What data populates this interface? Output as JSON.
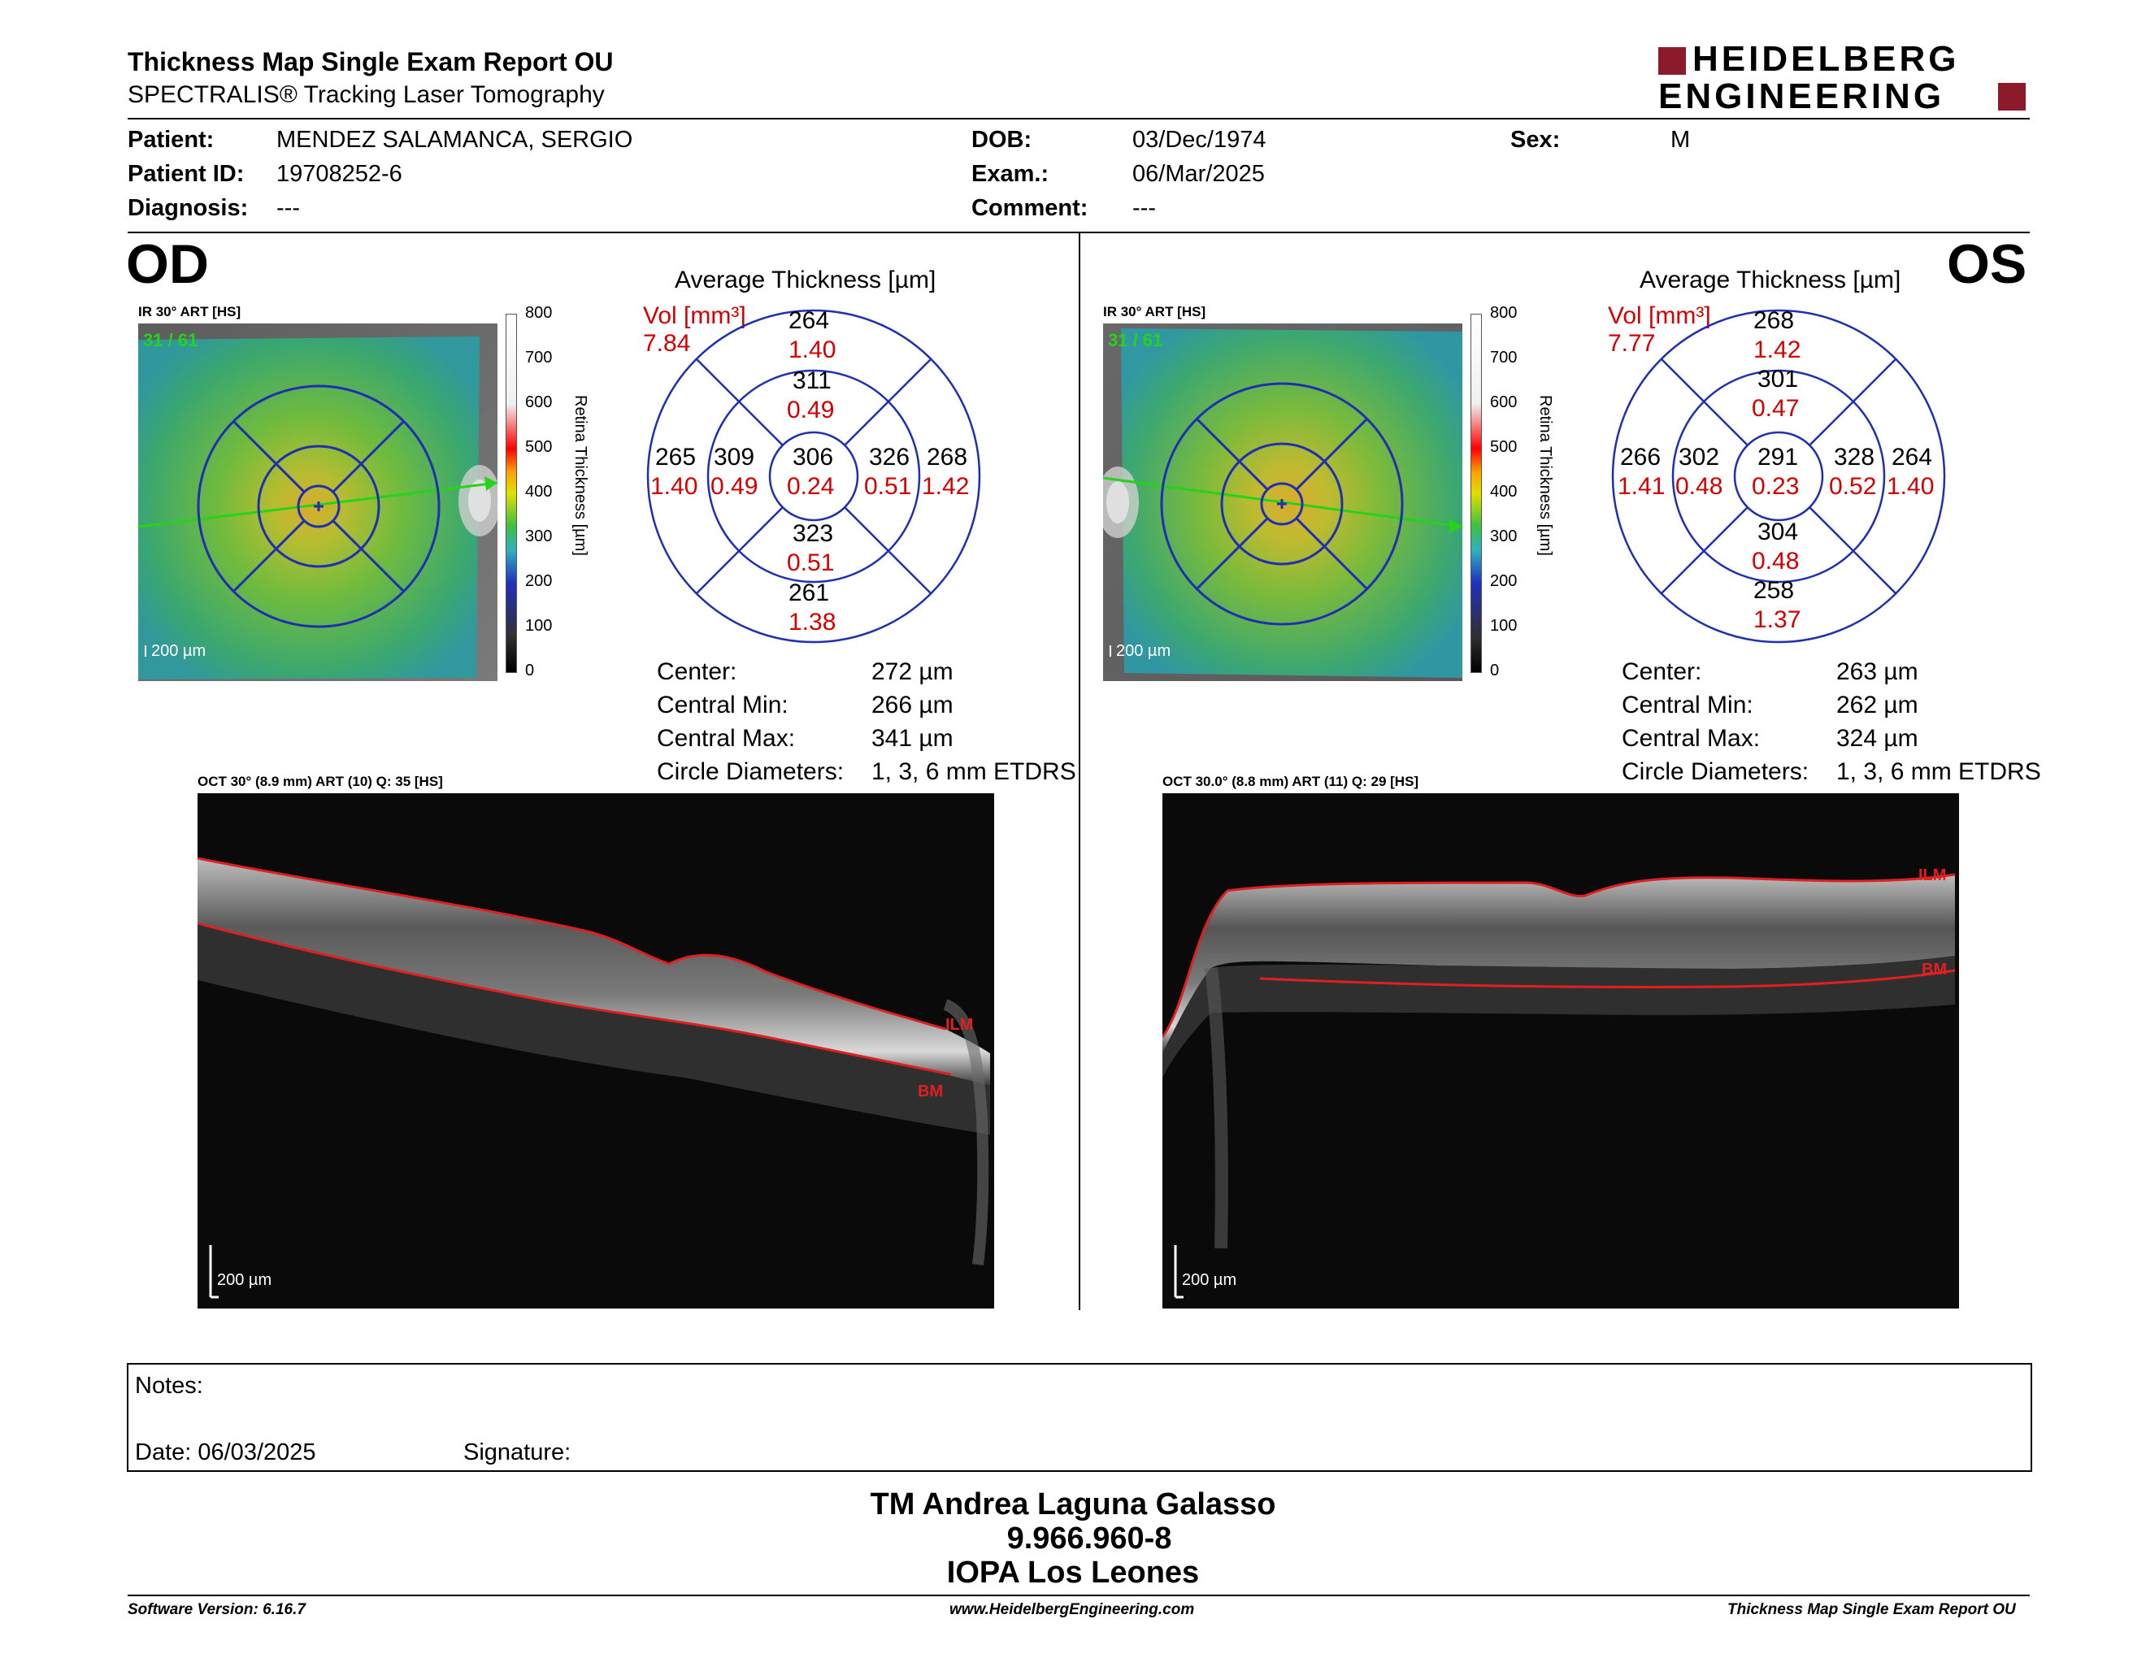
{
  "header": {
    "title": "Thickness Map Single Exam Report OU",
    "subtitle": "SPECTRALIS® Tracking Laser Tomography",
    "logo_line1": "HEIDELBERG",
    "logo_line2": "ENGINEERING"
  },
  "patient": {
    "patient_label": "Patient:",
    "patient_value": "MENDEZ SALAMANCA, SERGIO",
    "id_label": "Patient ID:",
    "id_value": "19708252-6",
    "diagnosis_label": "Diagnosis:",
    "diagnosis_value": "---",
    "dob_label": "DOB:",
    "dob_value": "03/Dec/1974",
    "exam_label": "Exam.:",
    "exam_value": "06/Mar/2025",
    "comment_label": "Comment:",
    "comment_value": "---",
    "sex_label": "Sex:",
    "sex_value": "M"
  },
  "colorbar": {
    "ticks": [
      "800",
      "700",
      "600",
      "500",
      "400",
      "300",
      "200",
      "100",
      "0"
    ],
    "label": "Retina  Thickness [µm]"
  },
  "od": {
    "eye": "OD",
    "ir_caption": "IR 30° ART [HS]",
    "frame": "31 / 61",
    "scale": "200 µm",
    "avg_title": "Average Thickness [µm]",
    "vol_label": "Vol [mm³]",
    "vol_value": "7.84",
    "grid": {
      "outer_sup": [
        "264",
        "1.40"
      ],
      "inner_sup": [
        "311",
        "0.49"
      ],
      "outer_temp": [
        "265",
        "1.40"
      ],
      "inner_temp": [
        "309",
        "0.49"
      ],
      "center": [
        "306",
        "0.24"
      ],
      "inner_nas": [
        "326",
        "0.51"
      ],
      "outer_nas": [
        "268",
        "1.42"
      ],
      "inner_inf": [
        "323",
        "0.51"
      ],
      "outer_inf": [
        "261",
        "1.38"
      ]
    },
    "stats": {
      "center_label": "Center:",
      "center_value": "272 µm",
      "min_label": "Central Min:",
      "min_value": "266 µm",
      "max_label": "Central Max:",
      "max_value": "341 µm",
      "diam_label": "Circle Diameters:",
      "diam_value": "1, 3, 6 mm ETDRS"
    },
    "oct_caption": "OCT 30° (8.9 mm) ART (10) Q: 35 [HS]",
    "oct_scale": "200 µm",
    "ilm": "ILM",
    "bm": "BM"
  },
  "os": {
    "eye": "OS",
    "ir_caption": "IR 30° ART [HS]",
    "frame": "31 / 61",
    "scale": "200 µm",
    "avg_title": "Average Thickness [µm]",
    "vol_label": "Vol [mm³]",
    "vol_value": "7.77",
    "grid": {
      "outer_sup": [
        "268",
        "1.42"
      ],
      "inner_sup": [
        "301",
        "0.47"
      ],
      "outer_temp": [
        "266",
        "1.41"
      ],
      "inner_temp": [
        "302",
        "0.48"
      ],
      "center": [
        "291",
        "0.23"
      ],
      "inner_nas": [
        "328",
        "0.52"
      ],
      "outer_nas": [
        "264",
        "1.40"
      ],
      "inner_inf": [
        "304",
        "0.48"
      ],
      "outer_inf": [
        "258",
        "1.37"
      ]
    },
    "stats": {
      "center_label": "Center:",
      "center_value": "263 µm",
      "min_label": "Central Min:",
      "min_value": "262 µm",
      "max_label": "Central Max:",
      "max_value": "324 µm",
      "diam_label": "Circle Diameters:",
      "diam_value": "1, 3, 6 mm ETDRS"
    },
    "oct_caption": "OCT 30.0° (8.8 mm) ART (11) Q: 29 [HS]",
    "oct_scale": "200 µm",
    "ilm": "ILM",
    "bm": "BM"
  },
  "notes": {
    "notes_label": "Notes:",
    "date_label": "Date: 06/03/2025",
    "signature_label": "Signature:"
  },
  "signature_block": {
    "name": "TM Andrea Laguna Galasso",
    "id": "9.966.960-8",
    "org": "IOPA Los Leones"
  },
  "footer": {
    "software": "Software Version: 6.16.7",
    "website": "www.HeidelbergEngineering.com",
    "report": "Thickness Map Single Exam Report OU"
  },
  "colors": {
    "circle_blue": "#1f2fb0",
    "value_red": "#d40000",
    "scan_green": "#27d21b",
    "logo_red": "#8b1a2b"
  }
}
